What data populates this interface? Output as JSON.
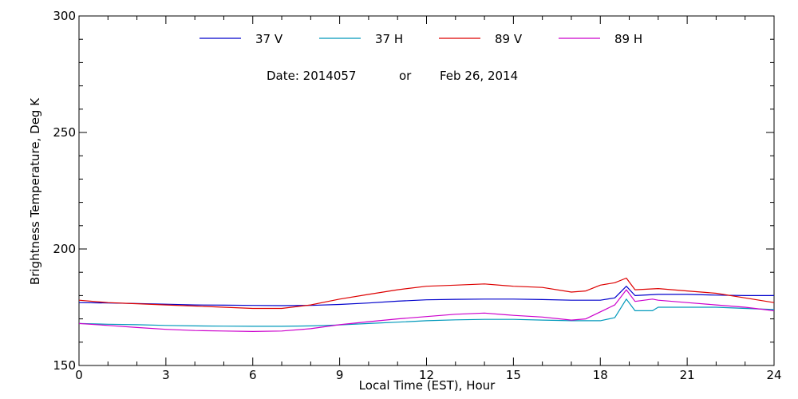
{
  "chart_data": {
    "type": "line",
    "annotation": {
      "date_label": "Date: 2014057",
      "or_label": "or",
      "date_text": "Feb 26, 2014"
    },
    "xlabel": "Local Time (EST), Hour",
    "ylabel": "Brightness Temperature, Deg K",
    "xlim": [
      0,
      24
    ],
    "ylim": [
      150,
      300
    ],
    "xticks": [
      "0",
      "3",
      "6",
      "9",
      "12",
      "15",
      "18",
      "21",
      "24"
    ],
    "yticks": [
      "150",
      "200",
      "250",
      "300"
    ],
    "grid": false,
    "legend_position": "top",
    "series": [
      {
        "name": "37 V",
        "color": "#0000cc",
        "x": [
          0,
          1,
          2,
          3,
          4,
          5,
          6,
          7,
          8,
          9,
          10,
          11,
          12,
          13,
          14,
          15,
          16,
          17,
          18,
          18.5,
          18.9,
          19.2,
          20,
          21,
          22,
          23,
          24
        ],
        "y": [
          177,
          176.8,
          176.6,
          176.3,
          176,
          175.9,
          175.8,
          175.7,
          175.8,
          176.2,
          176.8,
          177.6,
          178.2,
          178.4,
          178.5,
          178.5,
          178.3,
          178,
          178,
          179,
          184,
          180,
          180.5,
          180.5,
          180.2,
          180,
          180
        ]
      },
      {
        "name": "37 H",
        "color": "#0099bb",
        "x": [
          0,
          1,
          2,
          3,
          4,
          5,
          6,
          7,
          8,
          9,
          10,
          11,
          12,
          13,
          14,
          15,
          16,
          17,
          18,
          18.5,
          18.9,
          19.2,
          19.8,
          20,
          21,
          22,
          23,
          24
        ],
        "y": [
          168,
          167.7,
          167.5,
          167.2,
          167,
          166.9,
          166.8,
          166.8,
          167,
          167.4,
          168,
          168.6,
          169.2,
          169.6,
          169.8,
          169.8,
          169.5,
          169.2,
          169.2,
          170.5,
          178.5,
          173.5,
          173.5,
          175,
          175,
          175,
          174.5,
          174
        ]
      },
      {
        "name": "89 V",
        "color": "#dd0000",
        "x": [
          0,
          1,
          2,
          3,
          4,
          5,
          6,
          7,
          8,
          9,
          10,
          11,
          12,
          13,
          14,
          15,
          16,
          17,
          17.5,
          18,
          18.5,
          18.9,
          19.2,
          20,
          21,
          22,
          23,
          24
        ],
        "y": [
          178,
          177,
          176.5,
          176,
          175.5,
          175,
          174.5,
          174.5,
          176,
          178.5,
          180.5,
          182.5,
          184,
          184.5,
          185,
          184,
          183.5,
          181.5,
          182,
          184.5,
          185.5,
          187.5,
          182.5,
          183,
          182,
          181,
          179,
          177
        ]
      },
      {
        "name": "89 H",
        "color": "#cc00cc",
        "x": [
          0,
          1,
          2,
          3,
          4,
          5,
          6,
          7,
          8,
          9,
          10,
          11,
          12,
          13,
          14,
          15,
          16,
          17,
          17.5,
          18,
          18.5,
          18.9,
          19.2,
          19.8,
          20,
          21,
          22,
          23,
          24
        ],
        "y": [
          168,
          167.2,
          166.3,
          165.5,
          165,
          164.8,
          164.6,
          164.8,
          165.8,
          167.5,
          168.8,
          170,
          171,
          172,
          172.5,
          171.5,
          170.8,
          169.5,
          170,
          173,
          176,
          182.5,
          177.5,
          178.5,
          178,
          177,
          176,
          175,
          173.5
        ]
      }
    ]
  }
}
